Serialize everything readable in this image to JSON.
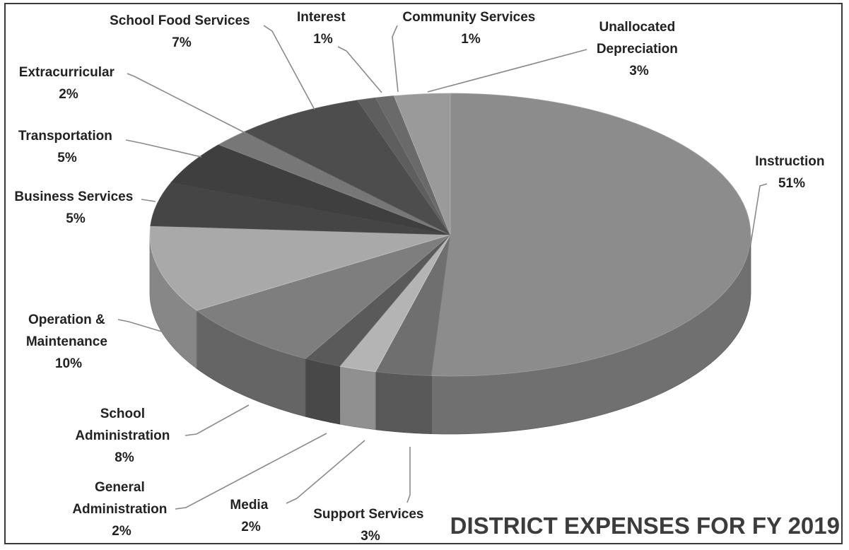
{
  "chart_data": {
    "type": "pie",
    "title": "DISTRICT EXPENSES FOR FY 2019",
    "slices": [
      {
        "label": "Instruction",
        "value": 51,
        "value_label": "51%",
        "color": "#8c8c8c"
      },
      {
        "label": "Support Services",
        "value": 3,
        "value_label": "3%",
        "color": "#6f6f6f"
      },
      {
        "label": "Media",
        "value": 2,
        "value_label": "2%",
        "color": "#b4b4b4"
      },
      {
        "label": "General Administration",
        "value": 2,
        "value_label": "2%",
        "color": "#5a5a5a"
      },
      {
        "label": "School Administration",
        "value": 8,
        "value_label": "8%",
        "color": "#7e7e7e"
      },
      {
        "label": "Operation & Maintenance",
        "value": 10,
        "value_label": "10%",
        "color": "#a9a9a9"
      },
      {
        "label": "Business Services",
        "value": 5,
        "value_label": "5%",
        "color": "#454545"
      },
      {
        "label": "Transportation",
        "value": 5,
        "value_label": "5%",
        "color": "#3f3f3f"
      },
      {
        "label": "Extracurricular",
        "value": 2,
        "value_label": "2%",
        "color": "#777777"
      },
      {
        "label": "School Food Services",
        "value": 7,
        "value_label": "7%",
        "color": "#4d4d4d"
      },
      {
        "label": "Interest",
        "value": 1,
        "value_label": "1%",
        "color": "#5e5e5e"
      },
      {
        "label": "Community Services",
        "value": 1,
        "value_label": "1%",
        "color": "#6a6a6a"
      },
      {
        "label": "Unallocated Depreciation",
        "value": 3,
        "value_label": "3%",
        "color": "#9a9a9a"
      }
    ],
    "labels": [
      {
        "lines": [
          "School  Food Services",
          "7%"
        ]
      },
      {
        "lines": [
          "Interest",
          "1%"
        ]
      },
      {
        "lines": [
          "Community Services",
          "1%"
        ]
      },
      {
        "lines": [
          "Unallocated",
          "Depreciation",
          "3%"
        ]
      },
      {
        "lines": [
          "Extracurricular",
          "2%"
        ]
      },
      {
        "lines": [
          "Transportation",
          "5%"
        ]
      },
      {
        "lines": [
          "Business  Services",
          "5%"
        ]
      },
      {
        "lines": [
          "Instruction",
          "51%"
        ]
      },
      {
        "lines": [
          "Operation &",
          "Maintenance",
          "10%"
        ]
      },
      {
        "lines": [
          "School",
          "Administration",
          "8%"
        ]
      },
      {
        "lines": [
          "General",
          "Administration",
          "2%"
        ]
      },
      {
        "lines": [
          "Media",
          "2%"
        ]
      },
      {
        "lines": [
          "Support Services",
          "3%"
        ]
      }
    ]
  }
}
